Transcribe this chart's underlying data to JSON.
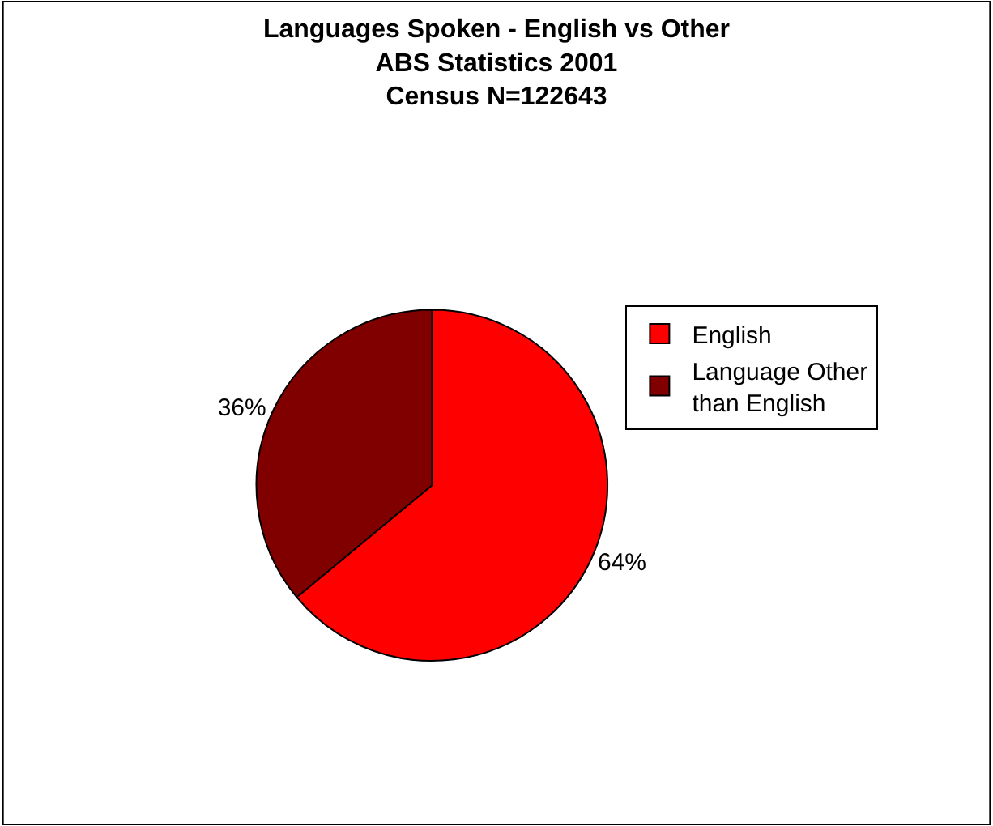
{
  "chart_data": {
    "type": "pie",
    "title": "Languages Spoken - English vs Other\nABS Statistics 2001\nCensus N=122643",
    "categories": [
      "English",
      "Language Other\nthan English"
    ],
    "values": [
      64,
      36
    ],
    "colors": [
      "#ff0000",
      "#800000"
    ],
    "value_labels": [
      "64%",
      "36%"
    ],
    "legend": "right"
  }
}
